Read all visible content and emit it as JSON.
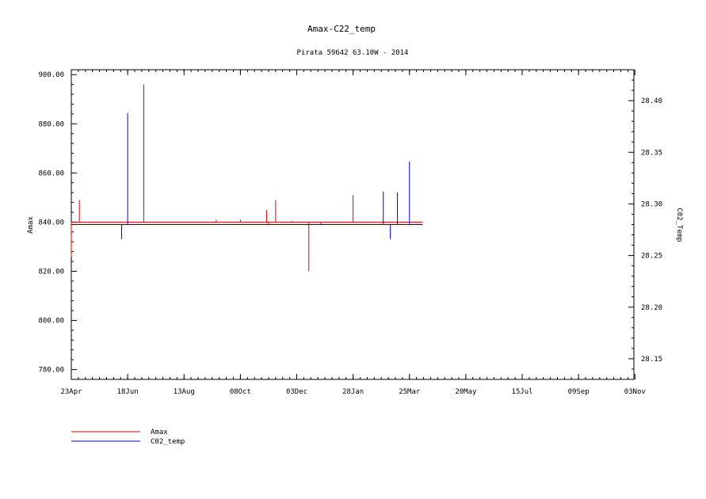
{
  "chart_data": {
    "type": "line",
    "title": "Amax-C22_temp",
    "subtitle": "Pirata 59642 63.10W - 2014",
    "x_ticks": [
      "23Apr",
      "18Jun",
      "13Aug",
      "08Oct",
      "03Dec",
      "28Jan",
      "25Mar",
      "20May",
      "15Jul",
      "09Sep",
      "03Nov"
    ],
    "x_range": [
      "2014-04-23",
      "2015-11-03"
    ],
    "left_axis": {
      "label": "Amax",
      "range": [
        776,
        902
      ],
      "ticks": [
        "780.00",
        "800.00",
        "820.00",
        "840.00",
        "860.00",
        "880.00",
        "900.00"
      ],
      "tick_values": [
        780,
        800,
        820,
        840,
        860,
        880,
        900
      ]
    },
    "right_axis": {
      "label": "C02_Temp",
      "range": [
        28.13,
        28.43
      ],
      "ticks": [
        "28.15",
        "28.20",
        "28.25",
        "28.30",
        "28.35",
        "28.40"
      ],
      "tick_values": [
        28.15,
        28.2,
        28.25,
        28.3,
        28.35,
        28.4
      ]
    },
    "series": [
      {
        "name": "Amax",
        "color": "#e00000",
        "axis": "left",
        "baseline": 840,
        "start": "2014-04-23",
        "end": "2015-04-07",
        "spikes": [
          {
            "date": "2014-04-23",
            "value": 826
          },
          {
            "date": "2014-05-01",
            "value": 849
          },
          {
            "date": "2014-07-04",
            "value": 896
          },
          {
            "date": "2014-09-14",
            "value": 841
          },
          {
            "date": "2014-10-08",
            "value": 841
          },
          {
            "date": "2014-11-03",
            "value": 845
          },
          {
            "date": "2014-11-05",
            "value": 839
          },
          {
            "date": "2014-11-12",
            "value": 849
          },
          {
            "date": "2014-11-28",
            "value": 840.5
          },
          {
            "date": "2014-12-15",
            "value": 820
          },
          {
            "date": "2015-01-28",
            "value": 851
          }
        ]
      },
      {
        "name": "C02_temp",
        "color": "#0000e0",
        "axis": "right",
        "baseline": 28.28,
        "start": "2014-04-23",
        "end": "2015-04-07",
        "spikes": [
          {
            "date": "2014-06-12",
            "value": 28.266
          },
          {
            "date": "2014-06-18",
            "value": 28.388
          },
          {
            "date": "2014-12-27",
            "value": 28.282
          },
          {
            "date": "2015-02-27",
            "value": 28.312
          },
          {
            "date": "2015-03-06",
            "value": 28.266
          },
          {
            "date": "2015-03-13",
            "value": 28.311
          },
          {
            "date": "2015-03-25",
            "value": 28.341
          }
        ]
      }
    ],
    "legend_position": "bottom-left",
    "grid": false
  }
}
